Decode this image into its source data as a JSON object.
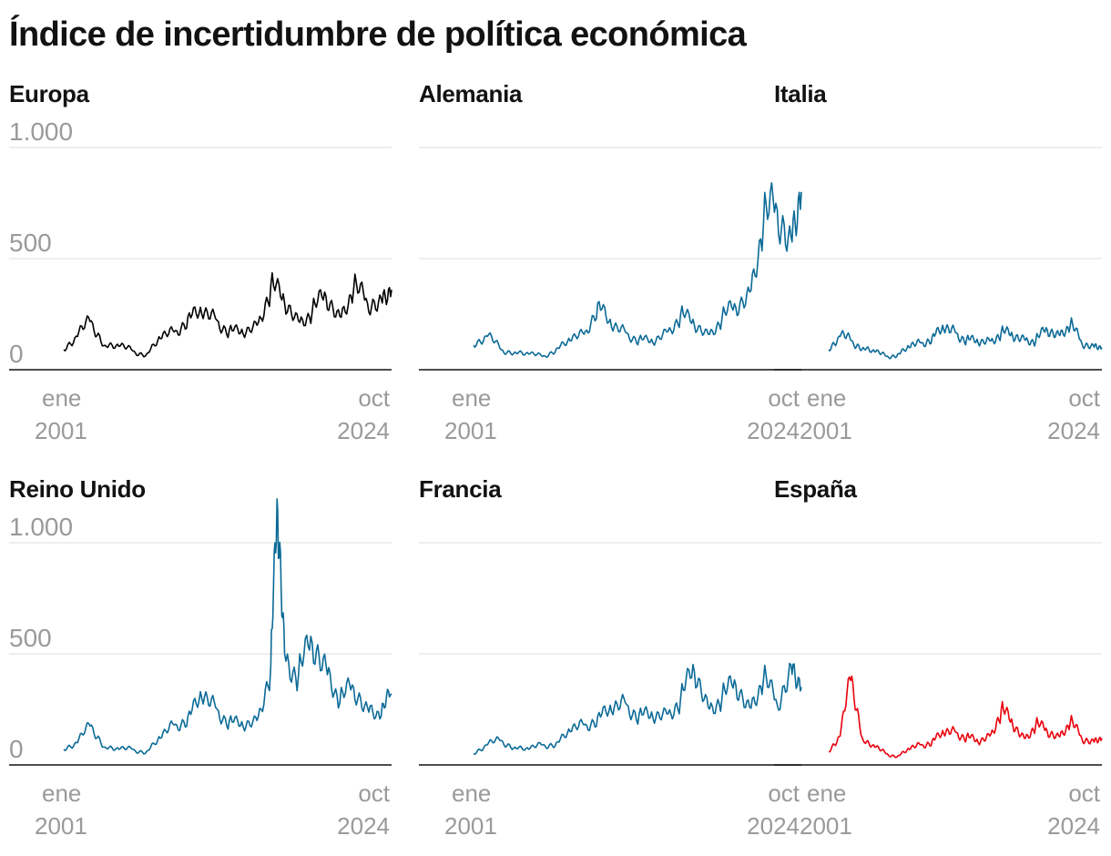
{
  "title": "Índice de incertidumbre de política económica",
  "colors": {
    "europe": "#000000",
    "country": "#0b6a97",
    "spain": "#e8000b",
    "grid": "#dcdcdc",
    "axis_text": "#9a9a9a"
  },
  "chart_data": [
    {
      "type": "line",
      "title": "Europa",
      "color": "#000000",
      "ylim": [
        0,
        1000
      ],
      "yticks": [
        {
          "value": 0,
          "label": "0"
        },
        {
          "value": 500,
          "label": "500"
        },
        {
          "value": 1000,
          "label": "1.000"
        }
      ],
      "show_y_labels": true,
      "x_start": {
        "month": "ene",
        "year": "2001"
      },
      "x_end": {
        "month": "oct",
        "year": "2024"
      },
      "grid": true,
      "series": [
        {
          "x": [
            2001.0,
            2002.0,
            2003.0,
            2004.0,
            2005.0,
            2006.0,
            2007.0,
            2008.0,
            2009.0,
            2010.0,
            2011.0,
            2012.0,
            2013.0,
            2014.0,
            2015.0,
            2016.0,
            2017.0,
            2018.0,
            2019.0,
            2020.0,
            2021.0,
            2022.0,
            2023.0,
            2024.0,
            2024.75
          ],
          "y": [
            90,
            150,
            220,
            110,
            105,
            85,
            70,
            140,
            170,
            240,
            250,
            230,
            180,
            160,
            200,
            380,
            300,
            220,
            260,
            330,
            240,
            360,
            300,
            320,
            360
          ]
        }
      ]
    },
    {
      "type": "line",
      "title": "Alemania",
      "color": "#0b6a97",
      "ylim": [
        0,
        1000
      ],
      "yticks": [
        {
          "value": 0,
          "label": "0"
        },
        {
          "value": 500,
          "label": "500"
        },
        {
          "value": 1000,
          "label": "1.000"
        }
      ],
      "show_y_labels": false,
      "x_start": {
        "month": "ene",
        "year": "2001"
      },
      "x_end": {
        "month": "oct",
        "year": "2024"
      },
      "grid": true,
      "series": [
        {
          "x": [
            2001.0,
            2002.0,
            2003.0,
            2004.0,
            2005.0,
            2006.0,
            2007.0,
            2008.0,
            2009.0,
            2010.0,
            2011.0,
            2012.0,
            2013.0,
            2014.0,
            2015.0,
            2016.0,
            2017.0,
            2018.0,
            2019.0,
            2020.0,
            2021.0,
            2022.0,
            2023.0,
            2024.0,
            2024.75
          ],
          "y": [
            110,
            150,
            90,
            80,
            70,
            60,
            95,
            130,
            160,
            300,
            190,
            170,
            140,
            120,
            170,
            250,
            200,
            160,
            230,
            280,
            350,
            650,
            720,
            600,
            800
          ]
        }
      ]
    },
    {
      "type": "line",
      "title": "Italia",
      "color": "#0b6a97",
      "ylim": [
        0,
        1000
      ],
      "yticks": [
        {
          "value": 0,
          "label": "0"
        },
        {
          "value": 500,
          "label": "500"
        },
        {
          "value": 1000,
          "label": "1.000"
        }
      ],
      "show_y_labels": false,
      "x_start": {
        "month": "ene",
        "year": "2001"
      },
      "x_end": {
        "month": "oct",
        "year": "2024"
      },
      "grid": true,
      "series": [
        {
          "x": [
            2001.0,
            2002.0,
            2003.0,
            2004.0,
            2005.0,
            2006.0,
            2007.0,
            2008.0,
            2009.0,
            2010.0,
            2011.0,
            2012.0,
            2013.0,
            2014.0,
            2015.0,
            2016.0,
            2017.0,
            2018.0,
            2019.0,
            2020.0,
            2021.0,
            2022.0,
            2023.0,
            2024.0,
            2024.75
          ],
          "y": [
            90,
            150,
            130,
            100,
            80,
            60,
            70,
            100,
            120,
            150,
            180,
            170,
            140,
            120,
            130,
            170,
            150,
            140,
            130,
            180,
            160,
            200,
            120,
            110,
            100
          ]
        }
      ]
    },
    {
      "type": "line",
      "title": "Reino Unido",
      "color": "#0b6a97",
      "ylim": [
        0,
        1000
      ],
      "yticks": [
        {
          "value": 0,
          "label": "0"
        },
        {
          "value": 500,
          "label": "500"
        },
        {
          "value": 1000,
          "label": "1.000"
        }
      ],
      "show_y_labels": true,
      "x_start": {
        "month": "ene",
        "year": "2001"
      },
      "x_end": {
        "month": "oct",
        "year": "2024"
      },
      "grid": true,
      "series": [
        {
          "x": [
            2001.0,
            2002.0,
            2003.0,
            2004.0,
            2005.0,
            2006.0,
            2007.0,
            2008.0,
            2009.0,
            2010.0,
            2011.0,
            2012.0,
            2013.0,
            2014.0,
            2015.0,
            2016.0,
            2016.5,
            2017.0,
            2018.0,
            2019.0,
            2020.0,
            2021.0,
            2022.0,
            2023.0,
            2024.0,
            2024.75
          ],
          "y": [
            70,
            100,
            180,
            80,
            70,
            70,
            60,
            120,
            180,
            220,
            300,
            260,
            200,
            170,
            200,
            450,
            1150,
            500,
            400,
            550,
            450,
            280,
            350,
            260,
            220,
            320
          ]
        }
      ]
    },
    {
      "type": "line",
      "title": "Francia",
      "color": "#0b6a97",
      "ylim": [
        0,
        1000
      ],
      "yticks": [
        {
          "value": 0,
          "label": "0"
        },
        {
          "value": 500,
          "label": "500"
        },
        {
          "value": 1000,
          "label": "1.000"
        }
      ],
      "show_y_labels": false,
      "x_start": {
        "month": "ene",
        "year": "2001"
      },
      "x_end": {
        "month": "oct",
        "year": "2024"
      },
      "grid": true,
      "series": [
        {
          "x": [
            2001.0,
            2002.0,
            2003.0,
            2004.0,
            2005.0,
            2006.0,
            2007.0,
            2008.0,
            2009.0,
            2010.0,
            2011.0,
            2012.0,
            2013.0,
            2014.0,
            2015.0,
            2016.0,
            2017.0,
            2018.0,
            2019.0,
            2020.0,
            2021.0,
            2022.0,
            2023.0,
            2024.0,
            2024.75
          ],
          "y": [
            50,
            90,
            110,
            80,
            70,
            90,
            100,
            150,
            180,
            220,
            240,
            280,
            230,
            210,
            230,
            300,
            420,
            260,
            300,
            360,
            260,
            380,
            270,
            450,
            350
          ]
        }
      ]
    },
    {
      "type": "line",
      "title": "España",
      "color": "#e8000b",
      "ylim": [
        0,
        1000
      ],
      "yticks": [
        {
          "value": 0,
          "label": "0"
        },
        {
          "value": 500,
          "label": "500"
        },
        {
          "value": 1000,
          "label": "1.000"
        }
      ],
      "show_y_labels": false,
      "x_start": {
        "month": "ene",
        "year": "2001"
      },
      "x_end": {
        "month": "oct",
        "year": "2024"
      },
      "grid": true,
      "series": [
        {
          "x": [
            2001.0,
            2002.0,
            2003.0,
            2004.0,
            2005.0,
            2006.0,
            2007.0,
            2008.0,
            2009.0,
            2010.0,
            2011.0,
            2012.0,
            2013.0,
            2014.0,
            2015.0,
            2016.0,
            2017.0,
            2018.0,
            2019.0,
            2020.0,
            2021.0,
            2022.0,
            2023.0,
            2024.0,
            2024.75
          ],
          "y": [
            60,
            130,
            400,
            110,
            80,
            50,
            40,
            70,
            90,
            110,
            140,
            150,
            130,
            100,
            130,
            250,
            180,
            120,
            180,
            150,
            130,
            190,
            120,
            110,
            120
          ]
        }
      ]
    }
  ]
}
